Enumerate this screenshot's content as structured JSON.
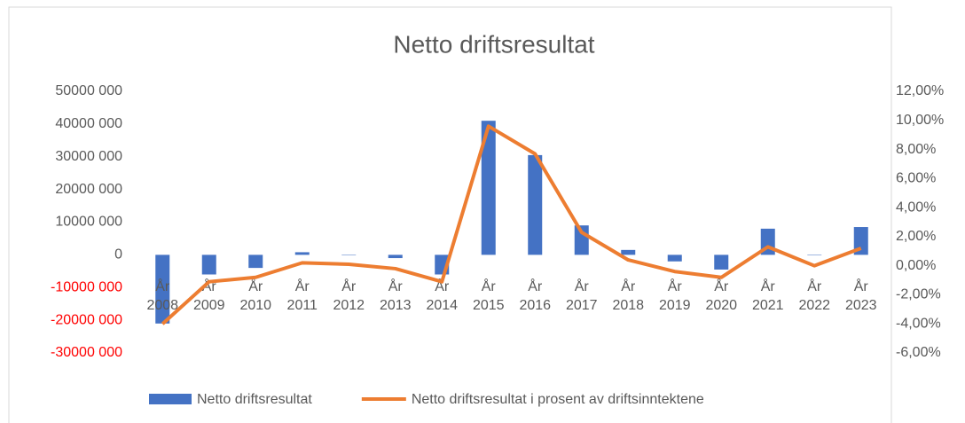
{
  "chart_data": {
    "type": "bar_line",
    "title": "Netto driftsresultat",
    "categories": [
      "År 2008",
      "År 2009",
      "År 2010",
      "År 2011",
      "År 2012",
      "År 2013",
      "År 2014",
      "År 2015",
      "År 2016",
      "År 2017",
      "År 2018",
      "År 2019",
      "År 2020",
      "År 2021",
      "År 2022",
      "År 2023"
    ],
    "series": [
      {
        "name": "Netto driftsresultat",
        "type": "bar",
        "color": "#4472c4",
        "axis": "y",
        "values": [
          -21000000,
          -6000000,
          -4000000,
          800000,
          0,
          -1000000,
          -6000000,
          41000000,
          30500000,
          9000000,
          1500000,
          -2000000,
          -4500000,
          8000000,
          0,
          8500000
        ]
      },
      {
        "name": "Netto driftsresultat i prosent av driftsinntektene",
        "type": "line",
        "color": "#ed7d31",
        "axis": "y2",
        "values": [
          -4.0,
          -1.1,
          -0.8,
          0.2,
          0.1,
          -0.2,
          -1.1,
          9.6,
          7.7,
          2.3,
          0.4,
          -0.4,
          -0.8,
          1.3,
          0.0,
          1.2
        ]
      }
    ],
    "ylim": [
      -30000000,
      50000000
    ],
    "yticks": [
      {
        "value": -30000000,
        "label": "-30000 000"
      },
      {
        "value": -20000000,
        "label": "-20000 000"
      },
      {
        "value": -10000000,
        "label": "-10000 000"
      },
      {
        "value": 0,
        "label": "0"
      },
      {
        "value": 10000000,
        "label": "10000 000"
      },
      {
        "value": 20000000,
        "label": "20000 000"
      },
      {
        "value": 30000000,
        "label": "30000 000"
      },
      {
        "value": 40000000,
        "label": "40000 000"
      },
      {
        "value": 50000000,
        "label": "50000 000"
      }
    ],
    "negative_tick_color": "#ff0000",
    "y2lim": [
      -6,
      12
    ],
    "y2ticks": [
      {
        "value": -6,
        "label": "-6,00%"
      },
      {
        "value": -4,
        "label": "-4,00%"
      },
      {
        "value": -2,
        "label": "-2,00%"
      },
      {
        "value": 0,
        "label": "0,00%"
      },
      {
        "value": 2,
        "label": "2,00%"
      },
      {
        "value": 4,
        "label": "4,00%"
      },
      {
        "value": 6,
        "label": "6,00%"
      },
      {
        "value": 8,
        "label": "8,00%"
      },
      {
        "value": 10,
        "label": "10,00%"
      },
      {
        "value": 12,
        "label": "12,00%"
      }
    ],
    "legend": "bottom"
  }
}
